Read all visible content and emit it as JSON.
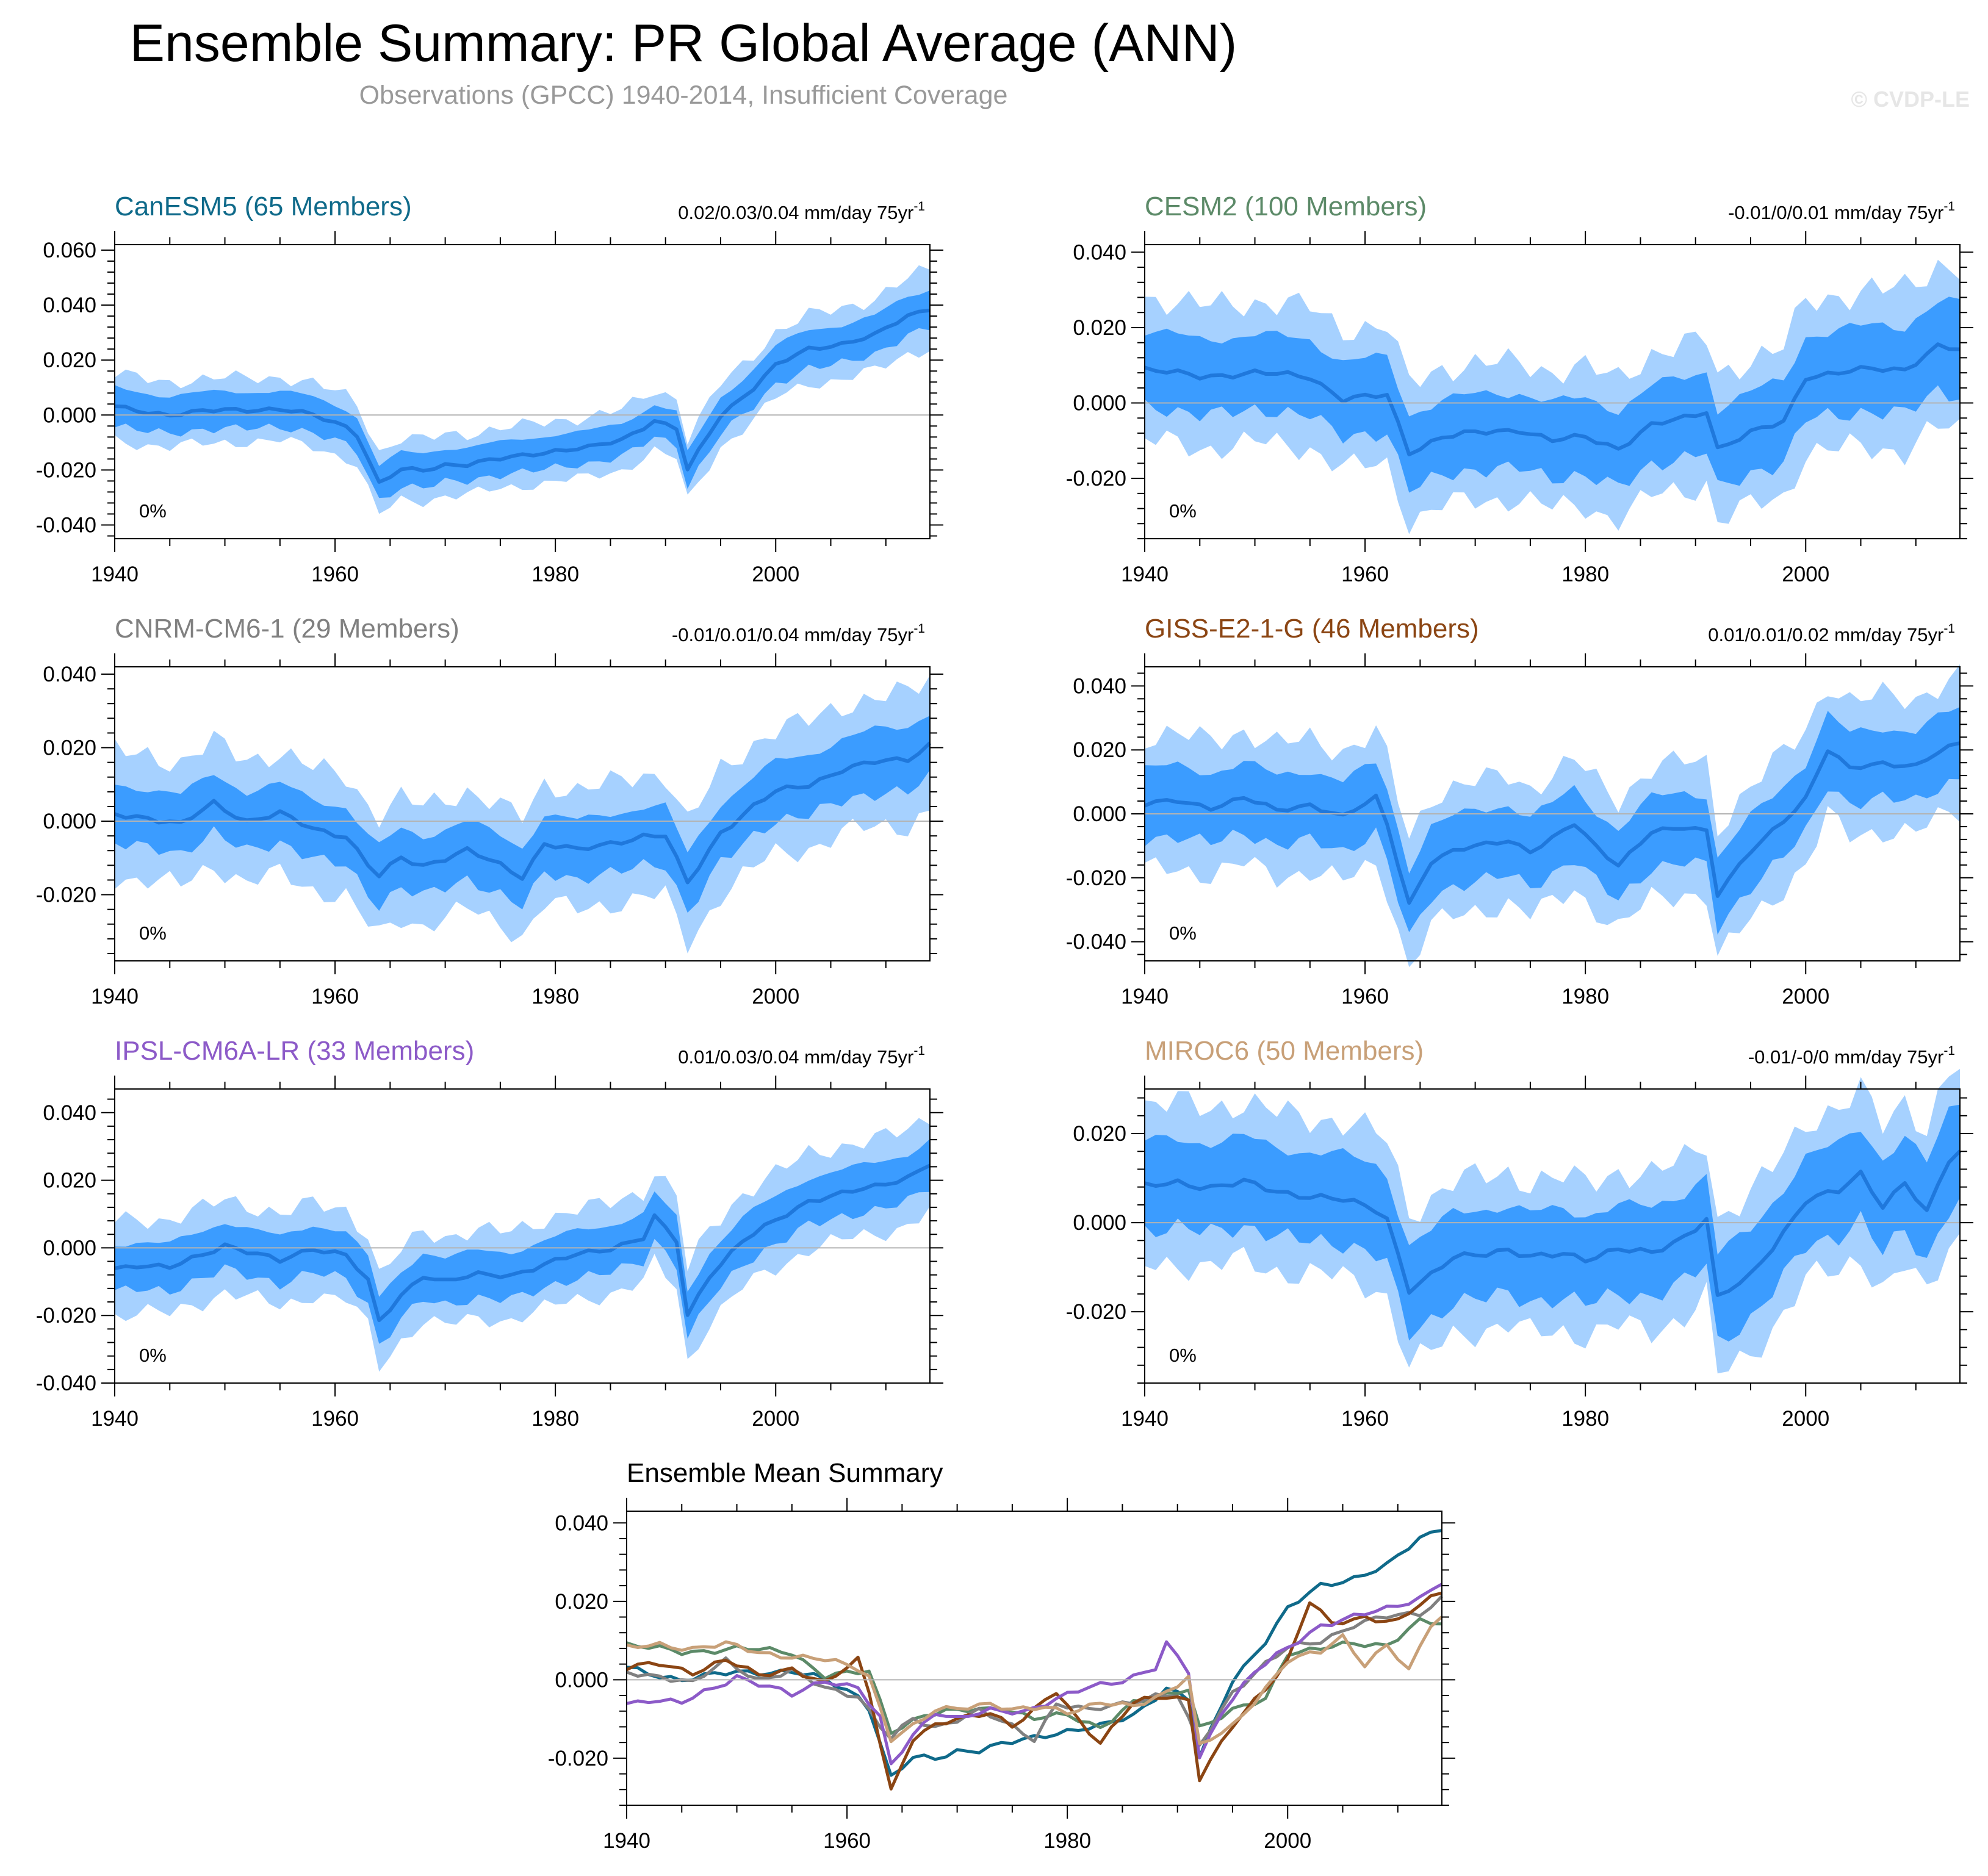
{
  "title": "Ensemble Summary: PR Global Average (ANN)",
  "subtitle": "Observations (GPCC) 1940-2014, Insufficient Coverage",
  "copyright": "© CVDP-LE",
  "colors": {
    "outer_band": "#a6d1ff",
    "inner_band": "#3b9cff",
    "mean_line": "#1f78dc",
    "zero_line": "#b3b3b3"
  },
  "chart_data": [
    {
      "id": "canesm5",
      "type": "area",
      "title": "CanESM5 (65 Members)",
      "title_color": "#0f6a8a",
      "trend_label": "0.02/0.03/0.04 mm/day 75yr",
      "trend_sup": "-1",
      "coverage_label": "0%",
      "xlim": [
        1940,
        2014
      ],
      "ylim": [
        -0.045,
        0.062
      ],
      "yticks": [
        -0.04,
        -0.02,
        0,
        0.02,
        0.04,
        0.06
      ],
      "ytick_labels": [
        "-0.040",
        "-0.020",
        "0.000",
        "0.020",
        "0.040",
        "0.060"
      ],
      "xticks": [
        1940,
        1960,
        1980,
        2000
      ],
      "xtick_labels": [
        "1940",
        "1960",
        "1980",
        "2000"
      ],
      "mean": [
        [
          1940,
          0.003
        ],
        [
          1945,
          0.0
        ],
        [
          1950,
          0.002
        ],
        [
          1955,
          0.002
        ],
        [
          1958,
          0.0
        ],
        [
          1961,
          -0.004
        ],
        [
          1962,
          -0.007
        ],
        [
          1964,
          -0.025
        ],
        [
          1966,
          -0.02
        ],
        [
          1968,
          -0.02
        ],
        [
          1970,
          -0.018
        ],
        [
          1972,
          -0.018
        ],
        [
          1975,
          -0.016
        ],
        [
          1978,
          -0.014
        ],
        [
          1980,
          -0.013
        ],
        [
          1983,
          -0.012
        ],
        [
          1986,
          -0.009
        ],
        [
          1989,
          -0.002
        ],
        [
          1991,
          -0.005
        ],
        [
          1992,
          -0.02
        ],
        [
          1995,
          0.0
        ],
        [
          1998,
          0.01
        ],
        [
          2000,
          0.018
        ],
        [
          2003,
          0.024
        ],
        [
          2006,
          0.026
        ],
        [
          2009,
          0.029
        ],
        [
          2012,
          0.036
        ],
        [
          2014,
          0.039
        ]
      ],
      "inner_half": [
        [
          1940,
          0.007
        ],
        [
          1975,
          0.006
        ],
        [
          1990,
          0.006
        ],
        [
          2000,
          0.007
        ],
        [
          2014,
          0.007
        ]
      ],
      "outer_half": [
        [
          1940,
          0.012
        ],
        [
          1975,
          0.011
        ],
        [
          1990,
          0.011
        ],
        [
          2000,
          0.012
        ],
        [
          2014,
          0.014
        ]
      ]
    },
    {
      "id": "cesm2",
      "type": "area",
      "title": "CESM2 (100 Members)",
      "title_color": "#5c8a68",
      "trend_label": "-0.01/0/0.01 mm/day 75yr",
      "trend_sup": "-1",
      "coverage_label": "0%",
      "xlim": [
        1940,
        2014
      ],
      "ylim": [
        -0.036,
        0.042
      ],
      "yticks": [
        -0.02,
        0,
        0.02,
        0.04
      ],
      "ytick_labels": [
        "-0.020",
        "0.000",
        "0.020",
        "0.040"
      ],
      "xticks": [
        1940,
        1960,
        1980,
        2000
      ],
      "xtick_labels": [
        "1940",
        "1960",
        "1980",
        "2000"
      ],
      "mean": [
        [
          1940,
          0.009
        ],
        [
          1945,
          0.007
        ],
        [
          1950,
          0.008
        ],
        [
          1955,
          0.007
        ],
        [
          1958,
          0.001
        ],
        [
          1962,
          0.002
        ],
        [
          1964,
          -0.013
        ],
        [
          1967,
          -0.009
        ],
        [
          1970,
          -0.008
        ],
        [
          1974,
          -0.007
        ],
        [
          1977,
          -0.01
        ],
        [
          1980,
          -0.009
        ],
        [
          1983,
          -0.012
        ],
        [
          1986,
          -0.006
        ],
        [
          1989,
          -0.004
        ],
        [
          1991,
          -0.002
        ],
        [
          1992,
          -0.012
        ],
        [
          1995,
          -0.008
        ],
        [
          1998,
          -0.005
        ],
        [
          2000,
          0.007
        ],
        [
          2003,
          0.008
        ],
        [
          2006,
          0.009
        ],
        [
          2009,
          0.009
        ],
        [
          2012,
          0.015
        ],
        [
          2014,
          0.014
        ]
      ],
      "inner_half": [
        [
          1940,
          0.01
        ],
        [
          1975,
          0.01
        ],
        [
          2000,
          0.011
        ],
        [
          2014,
          0.012
        ]
      ],
      "outer_half": [
        [
          1940,
          0.019
        ],
        [
          1975,
          0.018
        ],
        [
          2000,
          0.02
        ],
        [
          2014,
          0.022
        ]
      ]
    },
    {
      "id": "cnrm",
      "type": "area",
      "title": "CNRM-CM6-1 (29 Members)",
      "title_color": "#808080",
      "trend_label": "-0.01/0.01/0.04 mm/day 75yr",
      "trend_sup": "-1",
      "coverage_label": "0%",
      "xlim": [
        1940,
        2014
      ],
      "ylim": [
        -0.038,
        0.042
      ],
      "yticks": [
        -0.02,
        0,
        0.02,
        0.04
      ],
      "ytick_labels": [
        "-0.020",
        "0.000",
        "0.020",
        "0.040"
      ],
      "xticks": [
        1940,
        1960,
        1980,
        2000
      ],
      "xtick_labels": [
        "1940",
        "1960",
        "1980",
        "2000"
      ],
      "mean": [
        [
          1940,
          0.002
        ],
        [
          1943,
          0.001
        ],
        [
          1946,
          -0.001
        ],
        [
          1949,
          0.005
        ],
        [
          1952,
          0.0
        ],
        [
          1955,
          0.002
        ],
        [
          1958,
          -0.002
        ],
        [
          1961,
          -0.004
        ],
        [
          1963,
          -0.012
        ],
        [
          1964,
          -0.015
        ],
        [
          1966,
          -0.01
        ],
        [
          1968,
          -0.012
        ],
        [
          1970,
          -0.01
        ],
        [
          1972,
          -0.008
        ],
        [
          1975,
          -0.012
        ],
        [
          1977,
          -0.015
        ],
        [
          1979,
          -0.006
        ],
        [
          1982,
          -0.008
        ],
        [
          1985,
          -0.006
        ],
        [
          1988,
          -0.004
        ],
        [
          1990,
          -0.004
        ],
        [
          1992,
          -0.017
        ],
        [
          1995,
          -0.003
        ],
        [
          1998,
          0.004
        ],
        [
          2000,
          0.008
        ],
        [
          2003,
          0.01
        ],
        [
          2006,
          0.014
        ],
        [
          2009,
          0.016
        ],
        [
          2012,
          0.017
        ],
        [
          2014,
          0.021
        ]
      ],
      "inner_half": [
        [
          1940,
          0.008
        ],
        [
          1975,
          0.008
        ],
        [
          2000,
          0.008
        ],
        [
          2014,
          0.009
        ]
      ],
      "outer_half": [
        [
          1940,
          0.017
        ],
        [
          1975,
          0.016
        ],
        [
          2000,
          0.017
        ],
        [
          2014,
          0.018
        ]
      ]
    },
    {
      "id": "giss",
      "type": "area",
      "title": "GISS-E2-1-G (46 Members)",
      "title_color": "#8b4513",
      "trend_label": "0.01/0.01/0.02 mm/day 75yr",
      "trend_sup": "-1",
      "coverage_label": "0%",
      "xlim": [
        1940,
        2014
      ],
      "ylim": [
        -0.046,
        0.046
      ],
      "yticks": [
        -0.04,
        -0.02,
        0,
        0.02,
        0.04
      ],
      "ytick_labels": [
        "-0.040",
        "-0.020",
        "0.000",
        "0.020",
        "0.040"
      ],
      "xticks": [
        1940,
        1960,
        1980,
        2000
      ],
      "xtick_labels": [
        "1940",
        "1960",
        "1980",
        "2000"
      ],
      "mean": [
        [
          1940,
          0.003
        ],
        [
          1943,
          0.004
        ],
        [
          1946,
          0.002
        ],
        [
          1949,
          0.005
        ],
        [
          1952,
          0.001
        ],
        [
          1955,
          0.003
        ],
        [
          1958,
          -0.001
        ],
        [
          1961,
          0.005
        ],
        [
          1962,
          -0.003
        ],
        [
          1964,
          -0.028
        ],
        [
          1966,
          -0.015
        ],
        [
          1968,
          -0.012
        ],
        [
          1970,
          -0.01
        ],
        [
          1973,
          -0.008
        ],
        [
          1975,
          -0.012
        ],
        [
          1977,
          -0.008
        ],
        [
          1979,
          -0.003
        ],
        [
          1981,
          -0.01
        ],
        [
          1983,
          -0.016
        ],
        [
          1986,
          -0.006
        ],
        [
          1989,
          -0.004
        ],
        [
          1991,
          -0.005
        ],
        [
          1992,
          -0.025
        ],
        [
          1995,
          -0.012
        ],
        [
          1998,
          -0.002
        ],
        [
          2000,
          0.005
        ],
        [
          2002,
          0.02
        ],
        [
          2004,
          0.014
        ],
        [
          2007,
          0.016
        ],
        [
          2010,
          0.015
        ],
        [
          2012,
          0.019
        ],
        [
          2014,
          0.022
        ]
      ],
      "inner_half": [
        [
          1940,
          0.011
        ],
        [
          1975,
          0.011
        ],
        [
          2000,
          0.011
        ],
        [
          2014,
          0.011
        ]
      ],
      "outer_half": [
        [
          1940,
          0.021
        ],
        [
          1975,
          0.02
        ],
        [
          2000,
          0.021
        ],
        [
          2014,
          0.021
        ]
      ]
    },
    {
      "id": "ipsl",
      "type": "area",
      "title": "IPSL-CM6A-LR (33 Members)",
      "title_color": "#8c5ac8",
      "trend_label": "0.01/0.03/0.04 mm/day 75yr",
      "trend_sup": "-1",
      "coverage_label": "0%",
      "xlim": [
        1940,
        2014
      ],
      "ylim": [
        -0.04,
        0.047
      ],
      "yticks": [
        -0.04,
        -0.02,
        0,
        0.02,
        0.04
      ],
      "ytick_labels": [
        "-0.040",
        "-0.020",
        "0.000",
        "0.020",
        "0.040"
      ],
      "xticks": [
        1940,
        1960,
        1980,
        2000
      ],
      "xtick_labels": [
        "1940",
        "1960",
        "1980",
        "2000"
      ],
      "mean": [
        [
          1940,
          -0.006
        ],
        [
          1942,
          -0.005
        ],
        [
          1945,
          -0.006
        ],
        [
          1948,
          -0.002
        ],
        [
          1950,
          0.001
        ],
        [
          1953,
          -0.002
        ],
        [
          1955,
          -0.004
        ],
        [
          1958,
          0.0
        ],
        [
          1961,
          -0.002
        ],
        [
          1963,
          -0.01
        ],
        [
          1964,
          -0.022
        ],
        [
          1966,
          -0.014
        ],
        [
          1968,
          -0.008
        ],
        [
          1970,
          -0.01
        ],
        [
          1973,
          -0.008
        ],
        [
          1976,
          -0.008
        ],
        [
          1979,
          -0.005
        ],
        [
          1982,
          -0.002
        ],
        [
          1985,
          0.0
        ],
        [
          1988,
          0.003
        ],
        [
          1989,
          0.009
        ],
        [
          1991,
          0.002
        ],
        [
          1992,
          -0.02
        ],
        [
          1994,
          -0.008
        ],
        [
          1997,
          0.002
        ],
        [
          2000,
          0.008
        ],
        [
          2003,
          0.014
        ],
        [
          2006,
          0.016
        ],
        [
          2009,
          0.018
        ],
        [
          2012,
          0.021
        ],
        [
          2014,
          0.025
        ]
      ],
      "inner_half": [
        [
          1940,
          0.007
        ],
        [
          1975,
          0.007
        ],
        [
          2000,
          0.007
        ],
        [
          2014,
          0.007
        ]
      ],
      "outer_half": [
        [
          1940,
          0.014
        ],
        [
          1975,
          0.013
        ],
        [
          2000,
          0.014
        ],
        [
          2014,
          0.014
        ]
      ]
    },
    {
      "id": "miroc6",
      "type": "area",
      "title": "MIROC6 (50 Members)",
      "title_color": "#c8a078",
      "trend_label": "-0.01/-0/0 mm/day 75yr",
      "trend_sup": "-1",
      "coverage_label": "0%",
      "xlim": [
        1940,
        2014
      ],
      "ylim": [
        -0.036,
        0.03
      ],
      "yticks": [
        -0.02,
        0,
        0.02
      ],
      "ytick_labels": [
        "-0.020",
        "0.000",
        "0.020"
      ],
      "xticks": [
        1940,
        1960,
        1980,
        2000
      ],
      "xtick_labels": [
        "1940",
        "1960",
        "1980",
        "2000"
      ],
      "mean": [
        [
          1940,
          0.008
        ],
        [
          1943,
          0.009
        ],
        [
          1946,
          0.008
        ],
        [
          1949,
          0.009
        ],
        [
          1952,
          0.007
        ],
        [
          1955,
          0.006
        ],
        [
          1958,
          0.005
        ],
        [
          1961,
          0.003
        ],
        [
          1962,
          0.001
        ],
        [
          1964,
          -0.015
        ],
        [
          1966,
          -0.012
        ],
        [
          1968,
          -0.008
        ],
        [
          1970,
          -0.007
        ],
        [
          1973,
          -0.006
        ],
        [
          1975,
          -0.008
        ],
        [
          1978,
          -0.007
        ],
        [
          1980,
          -0.008
        ],
        [
          1983,
          -0.006
        ],
        [
          1986,
          -0.007
        ],
        [
          1989,
          -0.003
        ],
        [
          1991,
          0.001
        ],
        [
          1992,
          -0.017
        ],
        [
          1995,
          -0.012
        ],
        [
          1998,
          -0.002
        ],
        [
          2000,
          0.005
        ],
        [
          2003,
          0.007
        ],
        [
          2005,
          0.011
        ],
        [
          2007,
          0.004
        ],
        [
          2009,
          0.009
        ],
        [
          2011,
          0.002
        ],
        [
          2013,
          0.014
        ],
        [
          2014,
          0.016
        ]
      ],
      "inner_half": [
        [
          1940,
          0.01
        ],
        [
          1975,
          0.01
        ],
        [
          2000,
          0.01
        ],
        [
          2014,
          0.011
        ]
      ],
      "outer_half": [
        [
          1940,
          0.018
        ],
        [
          1975,
          0.017
        ],
        [
          2000,
          0.018
        ],
        [
          2014,
          0.019
        ]
      ]
    },
    {
      "id": "summary",
      "type": "line",
      "title": "Ensemble Mean Summary",
      "title_color": "#000000",
      "xlim": [
        1940,
        2014
      ],
      "ylim": [
        -0.032,
        0.043
      ],
      "yticks": [
        -0.02,
        0,
        0.02,
        0.04
      ],
      "ytick_labels": [
        "-0.020",
        "0.000",
        "0.020",
        "0.040"
      ],
      "xticks": [
        1940,
        1960,
        1980,
        2000
      ],
      "xtick_labels": [
        "1940",
        "1960",
        "1980",
        "2000"
      ],
      "series": [
        {
          "name": "CanESM5",
          "color": "#0f6a8a",
          "ref": "canesm5"
        },
        {
          "name": "CESM2",
          "color": "#5c8a68",
          "ref": "cesm2"
        },
        {
          "name": "CNRM-CM6-1",
          "color": "#808080",
          "ref": "cnrm"
        },
        {
          "name": "GISS-E2-1-G",
          "color": "#8b4513",
          "ref": "giss"
        },
        {
          "name": "IPSL-CM6A-LR",
          "color": "#8c5ac8",
          "ref": "ipsl"
        },
        {
          "name": "MIROC6",
          "color": "#c8a078",
          "ref": "miroc6"
        }
      ]
    }
  ]
}
